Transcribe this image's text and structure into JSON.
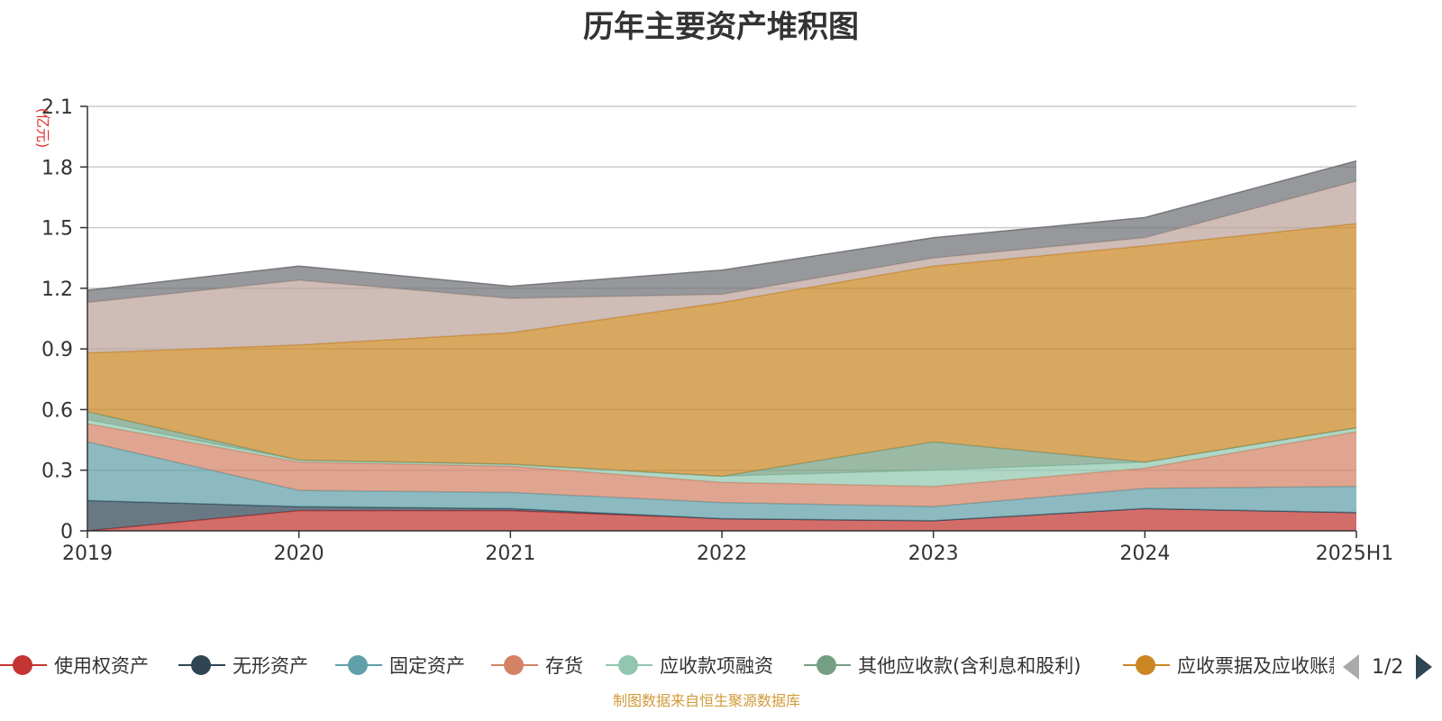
{
  "chart_data": {
    "type": "area",
    "title": "历年主要资产堆积图",
    "ylabel": "(亿元)",
    "xlabel": "",
    "ylim": [
      0,
      2.1
    ],
    "yticks": [
      "0",
      "0.3",
      "0.6",
      "0.9",
      "1.2",
      "1.5",
      "1.8",
      "2.1"
    ],
    "categories": [
      "2019",
      "2020",
      "2021",
      "2022",
      "2023",
      "2024",
      "2025H1"
    ],
    "stacked": true,
    "grid": true,
    "legend_position": "bottom",
    "series": [
      {
        "name": "使用权资产",
        "color": "#c23531",
        "values": [
          0.0,
          0.1,
          0.1,
          0.06,
          0.05,
          0.11,
          0.09
        ]
      },
      {
        "name": "无形资产",
        "color": "#2f4554",
        "values": [
          0.15,
          0.02,
          0.01,
          0.0,
          0.0,
          0.0,
          0.0
        ]
      },
      {
        "name": "固定资产",
        "color": "#61a0a8",
        "values": [
          0.29,
          0.08,
          0.08,
          0.08,
          0.07,
          0.1,
          0.13
        ]
      },
      {
        "name": "存货",
        "color": "#d48265",
        "values": [
          0.09,
          0.14,
          0.13,
          0.1,
          0.1,
          0.1,
          0.27
        ]
      },
      {
        "name": "应收款项融资",
        "color": "#91c7ae",
        "values": [
          0.02,
          0.01,
          0.01,
          0.03,
          0.08,
          0.03,
          0.02
        ]
      },
      {
        "name": "其他应收款(含利息和股利)",
        "color": "#749f83",
        "values": [
          0.04,
          0.0,
          0.0,
          0.0,
          0.14,
          0.0,
          0.0
        ]
      },
      {
        "name": "应收票据及应收账款",
        "color": "#ca8622",
        "values": [
          0.29,
          0.57,
          0.65,
          0.86,
          0.87,
          1.07,
          1.01
        ]
      },
      {
        "name": "",
        "color": "#bda29a",
        "values": [
          0.25,
          0.32,
          0.17,
          0.04,
          0.04,
          0.04,
          0.21
        ]
      },
      {
        "name": "",
        "color": "#6e7074",
        "values": [
          0.06,
          0.07,
          0.06,
          0.12,
          0.1,
          0.1,
          0.1
        ]
      }
    ]
  },
  "legend": {
    "page_indicator": "1/2"
  },
  "footer": {
    "source_note": "制图数据来自恒生聚源数据库"
  }
}
